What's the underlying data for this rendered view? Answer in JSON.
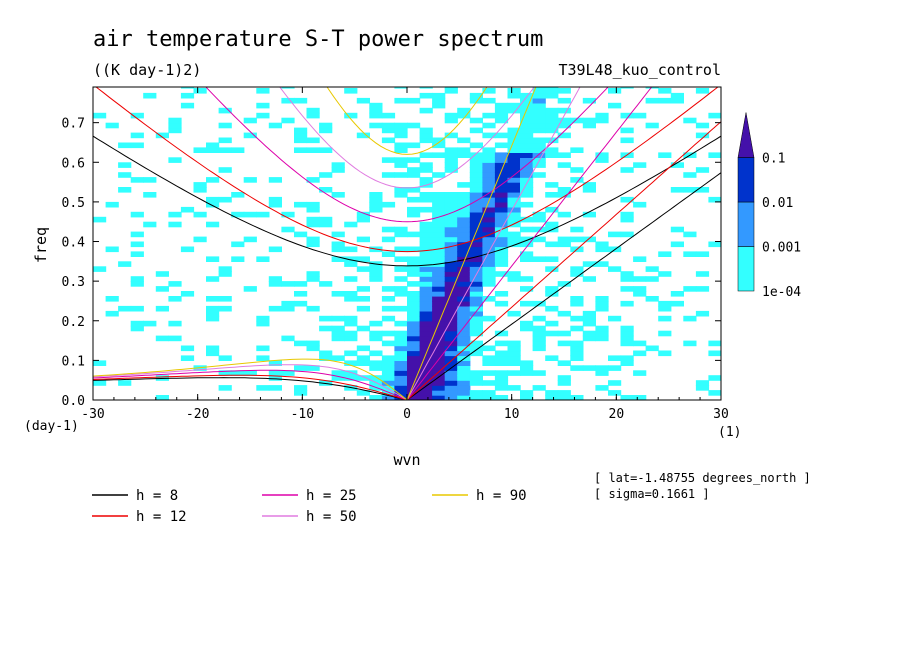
{
  "title": "air temperature S-T power spectrum",
  "units": "((K day-1)2)",
  "run_label": "T39L48_kuo_control",
  "chart_data": {
    "type": "heatmap",
    "xlabel": "wvn",
    "ylabel": "freq",
    "x_unit_label": "(1)",
    "y_unit_label": "(day-1)",
    "xlim": [
      -30,
      30
    ],
    "ylim": [
      0,
      0.79
    ],
    "x_ticks": [
      -30,
      -20,
      -10,
      0,
      10,
      20,
      30
    ],
    "x_tick_labels": [
      "-30",
      "-20",
      "-10",
      "0",
      "10",
      "20",
      "30"
    ],
    "y_ticks": [
      0,
      0.1,
      0.2,
      0.3,
      0.4,
      0.5,
      0.6,
      0.7
    ],
    "y_tick_labels": [
      "0.0",
      "0.1",
      "0.2",
      "0.3",
      "0.4",
      "0.5",
      "0.6",
      "0.7"
    ],
    "colorbar": {
      "levels": [
        0.0001,
        0.001,
        0.01,
        0.1
      ],
      "labels": [
        "1e-04",
        "0.001",
        "0.01",
        "0.1"
      ],
      "colors": [
        "#33ffff",
        "#3399ff",
        "#0033cc",
        "#4411aa"
      ]
    },
    "dispersion_curves": [
      {
        "name": "h =  8",
        "h": 8,
        "color": "#000000"
      },
      {
        "name": "h = 12",
        "h": 12,
        "color": "#ee0000"
      },
      {
        "name": "h = 25",
        "h": 25,
        "color": "#dd00aa"
      },
      {
        "name": "h = 50",
        "h": 50,
        "color": "#e07ce0"
      },
      {
        "name": "h = 90",
        "h": 90,
        "color": "#e8c800"
      }
    ]
  },
  "notes": {
    "lat": "[ lat=-1.48755 degrees_north ]",
    "sigma": "[ sigma=0.1661 ]"
  },
  "legend": {
    "items": [
      {
        "label": "h =  8",
        "color": "#000000"
      },
      {
        "label": "h = 25",
        "color": "#dd00aa"
      },
      {
        "label": "h = 90",
        "color": "#e8c800"
      },
      {
        "label": "h = 12",
        "color": "#ee0000"
      },
      {
        "label": "h = 50",
        "color": "#e07ce0"
      }
    ]
  }
}
